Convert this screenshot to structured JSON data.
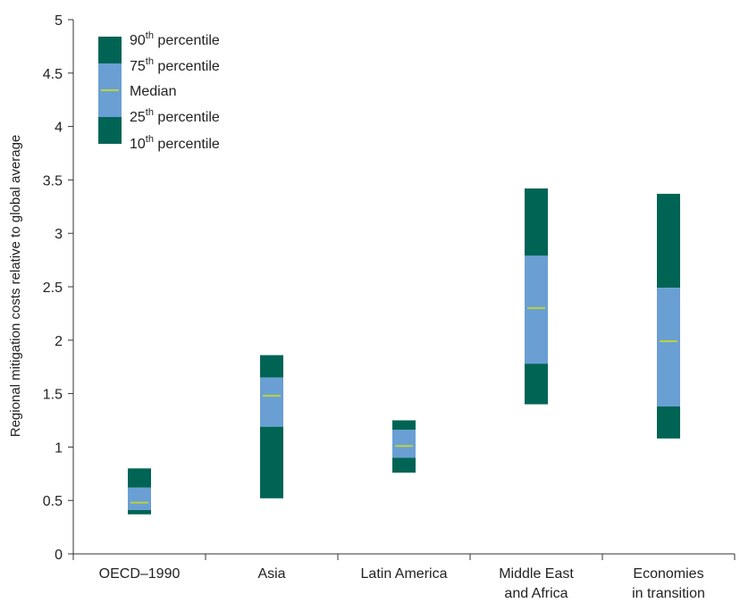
{
  "chart_data": {
    "type": "box",
    "ylabel": "Regional mitigation costs relative to global average",
    "xlabel": "",
    "ylim": [
      0,
      5
    ],
    "yticks": [
      "0",
      "0.5",
      "1",
      "1.5",
      "2",
      "2.5",
      "3",
      "3.5",
      "4",
      "4.5",
      "5"
    ],
    "grid": false,
    "legend_position": "top-left",
    "categories": [
      {
        "label": [
          "OECD–1990"
        ],
        "p10": 0.37,
        "p25": 0.41,
        "median": 0.48,
        "p75": 0.62,
        "p90": 0.8
      },
      {
        "label": [
          "Asia"
        ],
        "p10": 0.52,
        "p25": 1.19,
        "median": 1.48,
        "p75": 1.65,
        "p90": 1.86
      },
      {
        "label": [
          "Latin America"
        ],
        "p10": 0.76,
        "p25": 0.9,
        "median": 1.01,
        "p75": 1.16,
        "p90": 1.25
      },
      {
        "label": [
          "Middle East",
          "and Africa"
        ],
        "p10": 1.4,
        "p25": 1.78,
        "median": 2.3,
        "p75": 2.79,
        "p90": 3.42
      },
      {
        "label": [
          "Economies",
          "in transition"
        ],
        "p10": 1.08,
        "p25": 1.38,
        "median": 1.99,
        "p75": 2.49,
        "p90": 3.37
      }
    ],
    "legend": [
      {
        "base": "90",
        "sup": "th",
        "rest": " percentile"
      },
      {
        "base": "75",
        "sup": "th",
        "rest": " percentile"
      },
      {
        "base": "Median",
        "sup": "",
        "rest": ""
      },
      {
        "base": "25",
        "sup": "th",
        "rest": " percentile"
      },
      {
        "base": "10",
        "sup": "th",
        "rest": " percentile"
      }
    ],
    "colors": {
      "outer": "#006455",
      "inner": "#6a9fd4",
      "median": "#b9d33a",
      "axis": "#333333"
    }
  }
}
